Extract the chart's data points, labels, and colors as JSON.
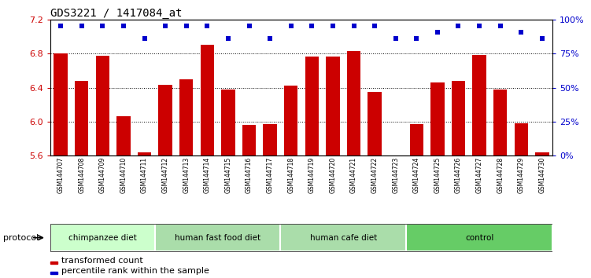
{
  "title": "GDS3221 / 1417084_at",
  "samples": [
    "GSM144707",
    "GSM144708",
    "GSM144709",
    "GSM144710",
    "GSM144711",
    "GSM144712",
    "GSM144713",
    "GSM144714",
    "GSM144715",
    "GSM144716",
    "GSM144717",
    "GSM144718",
    "GSM144719",
    "GSM144720",
    "GSM144721",
    "GSM144722",
    "GSM144723",
    "GSM144724",
    "GSM144725",
    "GSM144726",
    "GSM144727",
    "GSM144728",
    "GSM144729",
    "GSM144730"
  ],
  "bar_values": [
    6.8,
    6.48,
    6.77,
    6.06,
    5.64,
    6.43,
    6.5,
    6.9,
    6.38,
    5.96,
    5.97,
    6.42,
    6.76,
    6.76,
    6.83,
    6.35,
    5.55,
    5.97,
    6.46,
    6.48,
    6.78,
    6.38,
    5.98,
    5.64
  ],
  "percentile_values": [
    7.12,
    7.12,
    7.12,
    7.12,
    6.98,
    7.12,
    7.12,
    7.12,
    6.98,
    7.12,
    6.98,
    7.12,
    7.12,
    7.12,
    7.12,
    7.12,
    6.98,
    6.98,
    7.05,
    7.12,
    7.12,
    7.12,
    7.05,
    6.98
  ],
  "ylim": [
    5.6,
    7.2
  ],
  "yticks_left": [
    5.6,
    6.0,
    6.4,
    6.8,
    7.2
  ],
  "yticks_right": [
    0,
    25,
    50,
    75,
    100
  ],
  "bar_color": "#CC0000",
  "dot_color": "#0000CC",
  "groups": [
    {
      "label": "chimpanzee diet",
      "start": 0,
      "end": 4,
      "color": "#ccffcc"
    },
    {
      "label": "human fast food diet",
      "start": 5,
      "end": 10,
      "color": "#aaddaa"
    },
    {
      "label": "human cafe diet",
      "start": 11,
      "end": 16,
      "color": "#aaddaa"
    },
    {
      "label": "control",
      "start": 17,
      "end": 23,
      "color": "#66cc66"
    }
  ],
  "legend_items": [
    {
      "label": "transformed count",
      "color": "#CC0000"
    },
    {
      "label": "percentile rank within the sample",
      "color": "#0000CC"
    }
  ],
  "protocol_label": "protocol",
  "title_fontsize": 10,
  "bar_width": 0.65,
  "grid_lines": [
    6.0,
    6.4,
    6.8
  ]
}
